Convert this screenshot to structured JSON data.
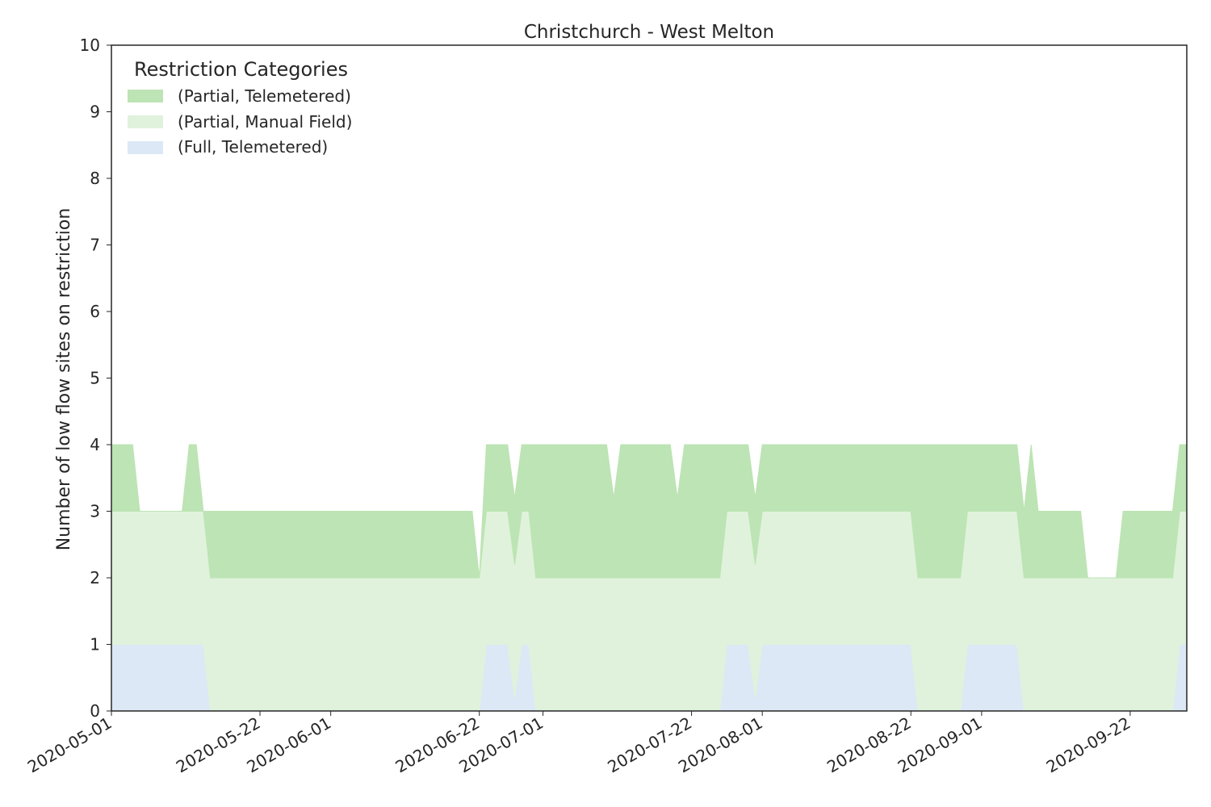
{
  "chart_data": {
    "type": "area",
    "stacked": true,
    "title": "Christchurch - West Melton",
    "xlabel": "",
    "ylabel": "Number of low flow sites on restriction",
    "ylim": [
      0,
      10
    ],
    "y_ticks": [
      "0",
      "1",
      "2",
      "3",
      "4",
      "5",
      "6",
      "7",
      "8",
      "9",
      "10"
    ],
    "xlim": [
      "2020-05-01",
      "2020-09-30"
    ],
    "x_ticks": [
      "2020-05-01",
      "2020-05-22",
      "2020-06-01",
      "2020-06-22",
      "2020-07-01",
      "2020-07-22",
      "2020-08-01",
      "2020-08-22",
      "2020-09-01",
      "2020-09-22"
    ],
    "grid": false,
    "legend": {
      "title": "Restriction Categories",
      "position": "top-left"
    },
    "colors": {
      "full_telemetered": "#dce8f5",
      "partial_manual_field": "#e0f2dc",
      "partial_telemetered": "#bde4b4",
      "axes": "#262626"
    },
    "series": [
      {
        "name": "(Full, Telemetered)",
        "color": "#dce8f5",
        "points": [
          [
            "2020-05-01",
            1
          ],
          [
            "2020-05-14",
            1
          ],
          [
            "2020-05-15",
            0
          ],
          [
            "2020-06-22",
            0
          ],
          [
            "2020-06-23",
            1
          ],
          [
            "2020-06-26",
            1
          ],
          [
            "2020-06-27",
            0.2
          ],
          [
            "2020-06-28",
            1
          ],
          [
            "2020-06-29",
            1
          ],
          [
            "2020-06-30",
            0
          ],
          [
            "2020-07-26",
            0
          ],
          [
            "2020-07-27",
            1
          ],
          [
            "2020-07-30",
            1
          ],
          [
            "2020-07-31",
            0.2
          ],
          [
            "2020-08-01",
            1
          ],
          [
            "2020-08-22",
            1
          ],
          [
            "2020-08-23",
            0
          ],
          [
            "2020-08-29",
            0
          ],
          [
            "2020-08-30",
            1
          ],
          [
            "2020-09-06",
            1
          ],
          [
            "2020-09-07",
            0
          ],
          [
            "2020-09-28",
            0
          ],
          [
            "2020-09-29",
            1
          ]
        ]
      },
      {
        "name": "(Partial, Manual Field)",
        "color": "#e0f2dc",
        "points": [
          [
            "2020-05-01",
            2
          ],
          [
            "2020-05-14",
            2
          ],
          [
            "2020-05-15",
            2
          ],
          [
            "2020-06-21",
            2
          ],
          [
            "2020-06-22",
            2
          ],
          [
            "2020-06-23",
            2
          ],
          [
            "2020-06-26",
            2
          ],
          [
            "2020-06-27",
            2
          ],
          [
            "2020-06-28",
            2
          ],
          [
            "2020-06-29",
            2
          ],
          [
            "2020-06-30",
            2
          ],
          [
            "2020-07-26",
            2
          ],
          [
            "2020-07-27",
            2
          ],
          [
            "2020-07-30",
            2
          ],
          [
            "2020-07-31",
            2
          ],
          [
            "2020-08-01",
            2
          ],
          [
            "2020-08-22",
            2
          ],
          [
            "2020-08-23",
            2
          ],
          [
            "2020-08-29",
            2
          ],
          [
            "2020-08-30",
            2
          ],
          [
            "2020-09-06",
            2
          ],
          [
            "2020-09-07",
            2
          ],
          [
            "2020-09-28",
            2
          ],
          [
            "2020-09-29",
            2
          ],
          [
            "2020-09-30",
            2
          ]
        ]
      },
      {
        "name": "(Partial, Telemetered)",
        "color": "#bde4b4",
        "points": [
          [
            "2020-05-01",
            1
          ],
          [
            "2020-05-04",
            1
          ],
          [
            "2020-05-05",
            0
          ],
          [
            "2020-05-11",
            0
          ],
          [
            "2020-05-12",
            1
          ],
          [
            "2020-05-13",
            1
          ],
          [
            "2020-05-14",
            0
          ],
          [
            "2020-05-15",
            1
          ],
          [
            "2020-06-21",
            1
          ],
          [
            "2020-06-22",
            0
          ],
          [
            "2020-06-23",
            1
          ],
          [
            "2020-06-29",
            1
          ],
          [
            "2020-06-30",
            2
          ],
          [
            "2020-07-04",
            2
          ],
          [
            "2020-07-05",
            2
          ],
          [
            "2020-07-10",
            2
          ],
          [
            "2020-07-11",
            1.2
          ],
          [
            "2020-07-12",
            2
          ],
          [
            "2020-07-19",
            2
          ],
          [
            "2020-07-20",
            1.2
          ],
          [
            "2020-07-21",
            2
          ],
          [
            "2020-07-26",
            2
          ],
          [
            "2020-07-27",
            1
          ],
          [
            "2020-07-31",
            1
          ],
          [
            "2020-08-01",
            1
          ],
          [
            "2020-08-22",
            1
          ],
          [
            "2020-08-23",
            2
          ],
          [
            "2020-08-29",
            2
          ],
          [
            "2020-08-30",
            1
          ],
          [
            "2020-09-06",
            1
          ],
          [
            "2020-09-07",
            1
          ],
          [
            "2020-09-08",
            2
          ],
          [
            "2020-09-09",
            1
          ],
          [
            "2020-09-15",
            1
          ],
          [
            "2020-09-16",
            0
          ],
          [
            "2020-09-20",
            0
          ],
          [
            "2020-09-21",
            1
          ],
          [
            "2020-09-29",
            1
          ],
          [
            "2020-09-30",
            1
          ]
        ]
      }
    ]
  }
}
